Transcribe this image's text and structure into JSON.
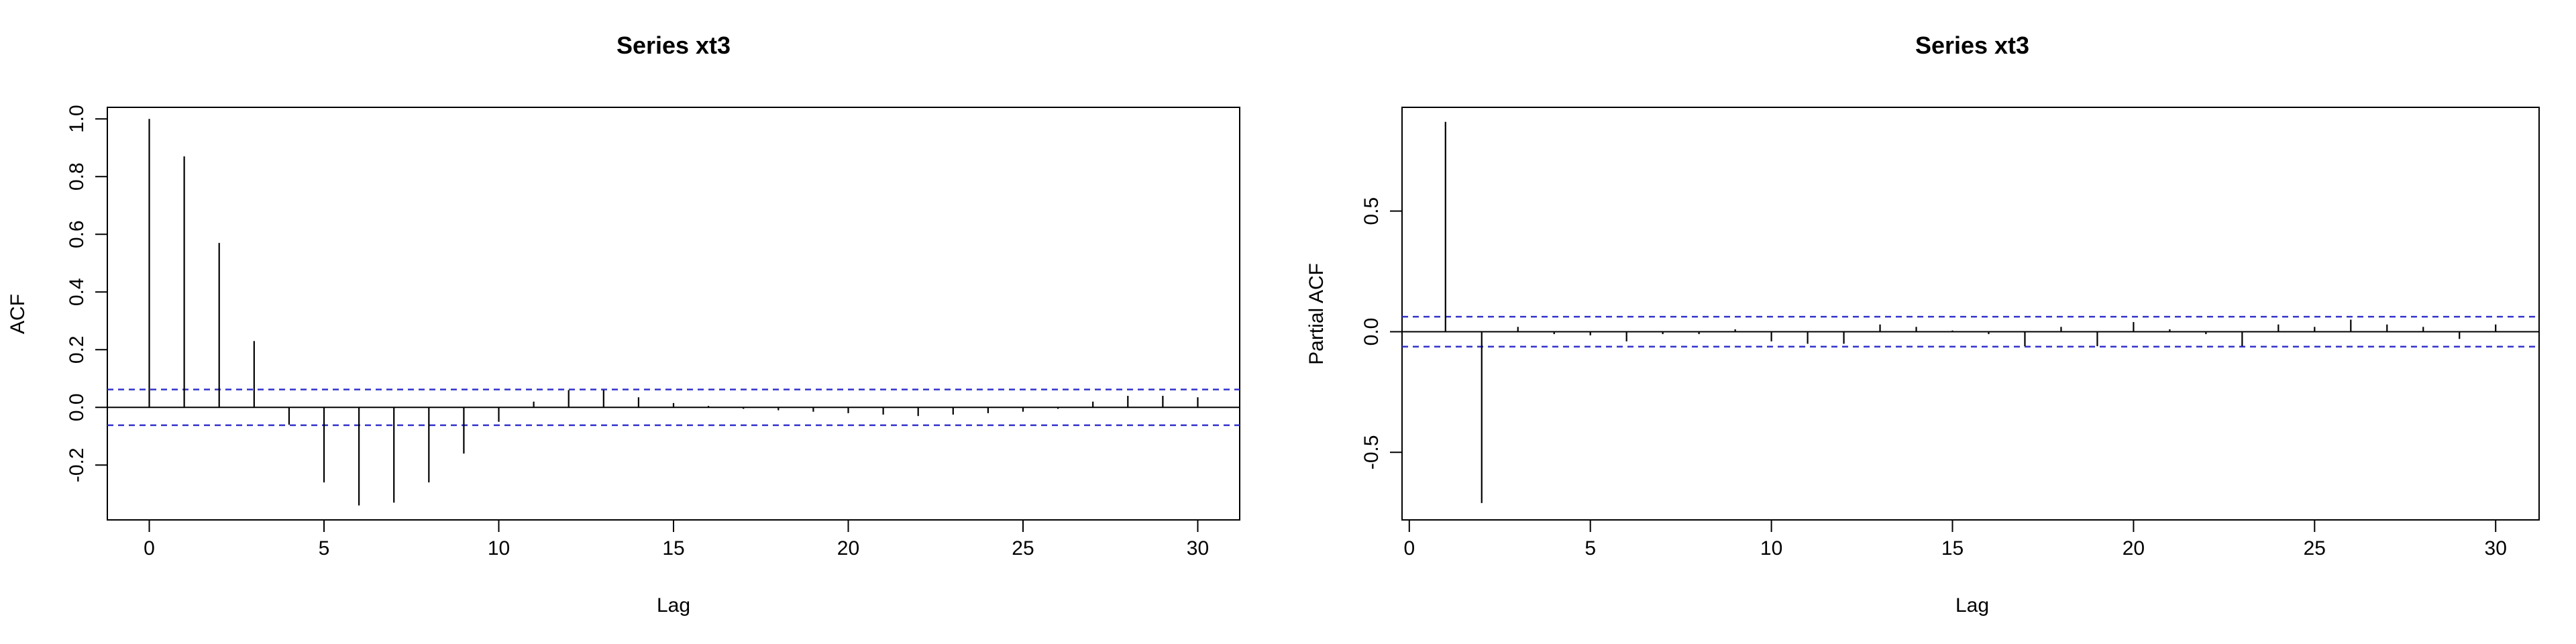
{
  "chart_data": [
    {
      "type": "bar",
      "title": "Series  xt3",
      "xlabel": "Lag",
      "ylabel": "ACF",
      "xlim": [
        -1.2,
        31.2
      ],
      "ylim": [
        -0.39,
        1.04
      ],
      "x_ticks": [
        0,
        5,
        10,
        15,
        20,
        25,
        30
      ],
      "y_ticks": [
        -0.2,
        0.0,
        0.2,
        0.4,
        0.6,
        0.8,
        1.0
      ],
      "confidence_bound": 0.062,
      "lags": [
        0,
        1,
        2,
        3,
        4,
        5,
        6,
        7,
        8,
        9,
        10,
        11,
        12,
        13,
        14,
        15,
        16,
        17,
        18,
        19,
        20,
        21,
        22,
        23,
        24,
        25,
        26,
        27,
        28,
        29,
        30
      ],
      "values": [
        1.0,
        0.87,
        0.57,
        0.23,
        -0.06,
        -0.26,
        -0.34,
        -0.33,
        -0.26,
        -0.16,
        -0.05,
        0.02,
        0.06,
        0.06,
        0.035,
        0.015,
        0.005,
        -0.005,
        -0.01,
        -0.015,
        -0.02,
        -0.025,
        -0.03,
        -0.025,
        -0.02,
        -0.015,
        -0.005,
        0.02,
        0.04,
        0.04,
        0.035
      ],
      "colors": {
        "bars": "#000000",
        "bounds": "#3333cc",
        "frame": "#000000"
      }
    },
    {
      "type": "bar",
      "title": "Series  xt3",
      "xlabel": "Lag",
      "ylabel": "Partial ACF",
      "xlim": [
        -0.2,
        31.2
      ],
      "ylim": [
        -0.78,
        0.93
      ],
      "x_ticks": [
        0,
        5,
        10,
        15,
        20,
        25,
        30
      ],
      "y_ticks": [
        -0.5,
        0.0,
        0.5
      ],
      "confidence_bound": 0.062,
      "lags": [
        1,
        2,
        3,
        4,
        5,
        6,
        7,
        8,
        9,
        10,
        11,
        12,
        13,
        14,
        15,
        16,
        17,
        18,
        19,
        20,
        21,
        22,
        23,
        24,
        25,
        26,
        27,
        28,
        29,
        30
      ],
      "values": [
        0.87,
        -0.71,
        0.02,
        -0.01,
        -0.015,
        -0.04,
        -0.01,
        -0.01,
        0.01,
        -0.04,
        -0.05,
        -0.05,
        0.03,
        0.02,
        0.005,
        -0.01,
        -0.06,
        0.02,
        -0.06,
        0.04,
        0.01,
        -0.01,
        -0.06,
        0.03,
        0.02,
        0.05,
        0.03,
        0.02,
        -0.03,
        0.03
      ],
      "colors": {
        "bars": "#000000",
        "bounds": "#3333cc",
        "frame": "#000000"
      }
    }
  ]
}
